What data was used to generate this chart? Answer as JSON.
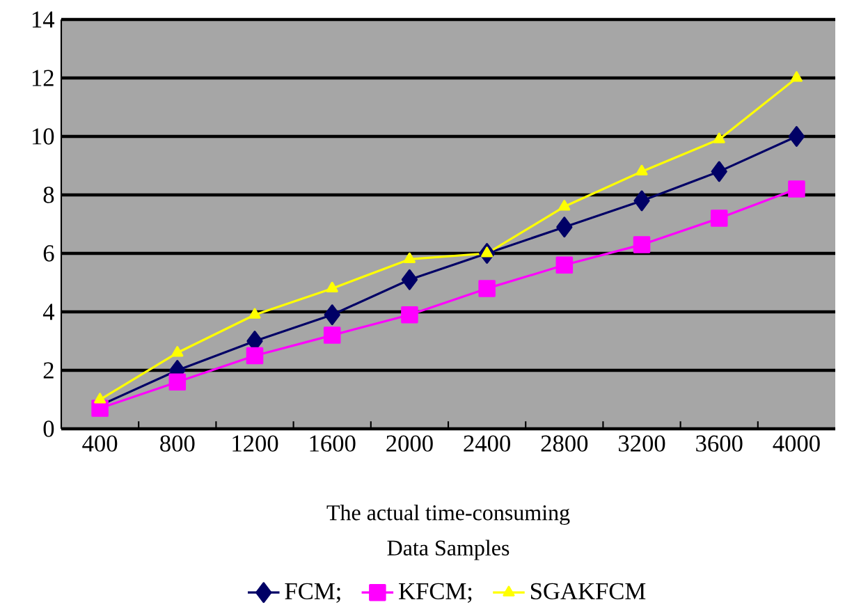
{
  "chart_data": {
    "type": "line",
    "xlabel": "Data Samples",
    "annotations": [
      "The actual time-consuming"
    ],
    "categories": [
      "400",
      "800",
      "1200",
      "1600",
      "2000",
      "2400",
      "2800",
      "3200",
      "3600",
      "4000"
    ],
    "series": [
      {
        "name": "FCM;",
        "color": "#000066",
        "marker": "diamond",
        "values": [
          0.8,
          2.0,
          3.0,
          3.9,
          5.1,
          6.0,
          6.9,
          7.8,
          8.8,
          10.0
        ]
      },
      {
        "name": "KFCM;",
        "color": "#ff00ff",
        "marker": "square",
        "values": [
          0.7,
          1.6,
          2.5,
          3.2,
          3.9,
          4.8,
          5.6,
          6.3,
          7.2,
          8.2
        ]
      },
      {
        "name": "SGAKFCM",
        "color": "#ffff00",
        "marker": "triangle",
        "values": [
          1.0,
          2.6,
          3.9,
          4.8,
          5.8,
          6.0,
          7.6,
          8.8,
          9.9,
          12.0
        ]
      }
    ],
    "ylim": [
      0,
      14
    ],
    "yticks": [
      0,
      2,
      4,
      6,
      8,
      10,
      12,
      14
    ],
    "grid": "y",
    "legend": "bottom"
  }
}
